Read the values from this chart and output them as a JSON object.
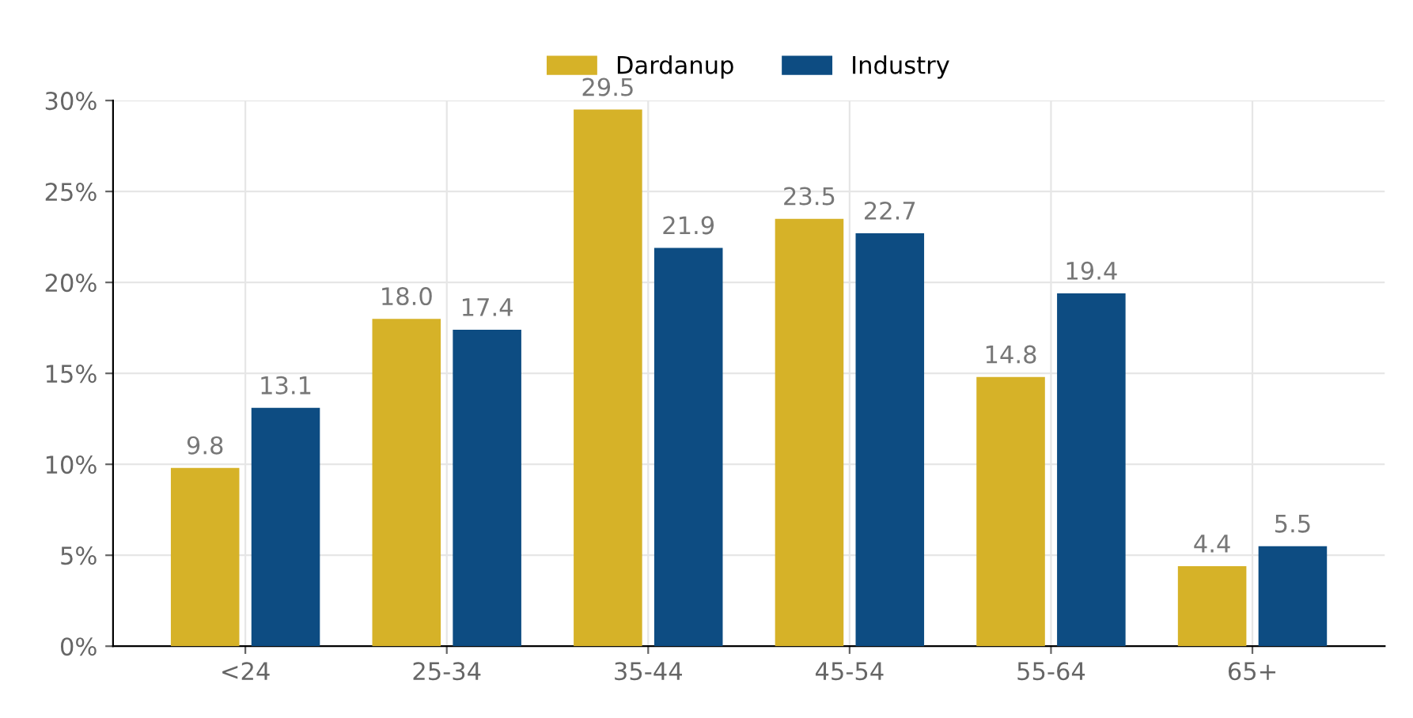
{
  "chart_data": {
    "type": "bar",
    "categories": [
      "<24",
      "25-34",
      "35-44",
      "45-54",
      "55-64",
      "65+"
    ],
    "series": [
      {
        "name": "Dardanup",
        "color": "#d6b228",
        "values": [
          9.8,
          18.0,
          29.5,
          23.5,
          14.8,
          4.4
        ],
        "value_labels": [
          "9.8",
          "18.0",
          "29.5",
          "23.5",
          "14.8",
          "4.4"
        ]
      },
      {
        "name": "Industry",
        "color": "#0d4c82",
        "values": [
          13.1,
          17.4,
          21.9,
          22.7,
          19.4,
          5.5
        ],
        "value_labels": [
          "13.1",
          "17.4",
          "21.9",
          "22.7",
          "19.4",
          "5.5"
        ]
      }
    ],
    "ylim": [
      0,
      30
    ],
    "yticks": [
      {
        "value": 0,
        "label": "0%"
      },
      {
        "value": 5,
        "label": "5%"
      },
      {
        "value": 10,
        "label": "10%"
      },
      {
        "value": 15,
        "label": "15%"
      },
      {
        "value": 20,
        "label": "20%"
      },
      {
        "value": 25,
        "label": "25%"
      },
      {
        "value": 30,
        "label": "30%"
      }
    ],
    "grid": true,
    "legend": "top"
  }
}
